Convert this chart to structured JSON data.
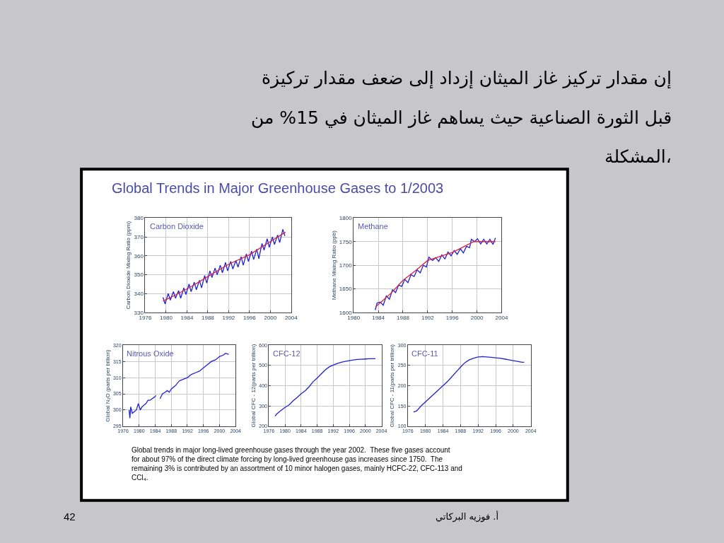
{
  "chart_data": [
    {
      "type": "line",
      "title": "Carbon Dioxide",
      "ylabel": "Carbon Dioxide Mixing Ratio (ppm)",
      "xlim": [
        1976,
        2004
      ],
      "xticks": [
        1976,
        1980,
        1984,
        1988,
        1992,
        1996,
        2000,
        2004
      ],
      "ylim": [
        330,
        380
      ],
      "yticks": [
        330,
        340,
        350,
        360,
        370,
        380
      ],
      "grid": true,
      "annotations": [
        "إن مقدار تركيز غاز الميثان إزداد إلى ضعف مقدار تركيزة",
        "قبل الثورة الصناعية حيث يساهم غاز الميثان في 15% من",
        "المشكلة،",
        "Global Trends in Major Greenhouse Gases to 1/2003",
        "Global trends in major long-lived greenhouse gases through the year 2002.  These five gases account for about 97% of the direct climate forcing by long-lived greenhouse gas increases since 1750.  The remaining 3% is contributed by an assortment of 10 minor halogen gases, mainly HCFC-22, CFC-113 and CCl₄.",
        "أ. فوزيه البركاتي",
        "42"
      ],
      "series": [
        {
          "color": "#1f22d6",
          "x": [
            1979.4,
            1979.8,
            1980.4,
            1980.8,
            1981.4,
            1981.8,
            1982.4,
            1982.8,
            1983.4,
            1983.8,
            1984.4,
            1984.8,
            1985.4,
            1985.8,
            1986.4,
            1986.8,
            1987.4,
            1987.8,
            1988.4,
            1988.8,
            1989.4,
            1989.8,
            1990.4,
            1990.8,
            1991.4,
            1991.8,
            1992.4,
            1992.8,
            1993.4,
            1993.8,
            1994.4,
            1994.8,
            1995.4,
            1995.8,
            1996.4,
            1996.8,
            1997.4,
            1997.8,
            1998.4,
            1998.8,
            1999.4,
            1999.8,
            2000.4,
            2000.8,
            2001.4,
            2001.8,
            2002.4,
            2002.8
          ],
          "values": [
            338,
            334.5,
            340,
            336.5,
            341,
            337.5,
            341.5,
            337.5,
            343,
            339.5,
            345,
            341,
            346,
            342,
            347,
            343,
            349.5,
            345.5,
            352,
            348.5,
            353.5,
            350,
            355,
            351,
            356.5,
            352,
            357,
            353,
            357.5,
            354,
            359.5,
            355,
            361,
            357,
            362.5,
            358,
            363.5,
            358.5,
            366.5,
            363,
            369,
            364.5,
            370,
            366,
            371,
            367,
            374,
            370.5
          ]
        },
        {
          "color": "#e0203a",
          "x": [
            1979.4,
            1982,
            1985,
            1988,
            1992,
            1996,
            2000,
            2002.9
          ],
          "values": [
            336,
            339.5,
            344,
            349,
            355.5,
            360.5,
            367.5,
            372.5
          ]
        }
      ]
    },
    {
      "type": "line",
      "title": "Methane",
      "ylabel": "Methane Mixing Ratio (ppb)",
      "xlim": [
        1980,
        2004
      ],
      "xticks": [
        1980,
        1984,
        1988,
        1992,
        1996,
        2000,
        2004
      ],
      "ylim": [
        1600,
        1800
      ],
      "yticks": [
        1600,
        1650,
        1700,
        1750,
        1800
      ],
      "grid": true,
      "series": [
        {
          "color": "#1f22d6",
          "x": [
            1983.5,
            1983.8,
            1984.3,
            1984.8,
            1985.3,
            1985.8,
            1986.3,
            1986.8,
            1987.3,
            1987.8,
            1988.3,
            1988.8,
            1989.3,
            1989.8,
            1990.3,
            1990.8,
            1991.3,
            1991.8,
            1992.2,
            1992.8,
            1993.3,
            1993.8,
            1994.3,
            1994.8,
            1995.3,
            1995.8,
            1996.3,
            1996.8,
            1997.3,
            1997.8,
            1998.3,
            1998.8,
            1999.1,
            1999.6,
            2000.1,
            2000.6,
            2001.1,
            2001.6,
            2002.1,
            2002.6,
            2003
          ],
          "values": [
            1605,
            1620,
            1622,
            1615,
            1635,
            1628,
            1648,
            1642,
            1658,
            1655,
            1670,
            1663,
            1680,
            1676,
            1690,
            1684,
            1700,
            1696,
            1717,
            1710,
            1716,
            1708,
            1722,
            1713,
            1728,
            1720,
            1731,
            1723,
            1735,
            1726,
            1740,
            1737,
            1755,
            1750,
            1756,
            1745,
            1755,
            1745,
            1755,
            1744,
            1758
          ]
        },
        {
          "color": "#e0203a",
          "x": [
            1983.6,
            1986,
            1988,
            1990,
            1992,
            1996,
            1999.5,
            2003
          ],
          "values": [
            1612,
            1640,
            1668,
            1688,
            1710,
            1727,
            1750,
            1750
          ]
        }
      ]
    },
    {
      "type": "line",
      "title": "Nitrous Oxide",
      "ylabel": "Global N₂O (parts per billion)",
      "xlim": [
        1976,
        2004
      ],
      "xticks": [
        1976,
        1980,
        1984,
        1988,
        1992,
        1996,
        2000,
        2004
      ],
      "ylim": [
        295,
        320
      ],
      "yticks": [
        295,
        300,
        305,
        310,
        315,
        320
      ],
      "grid": true,
      "series": [
        {
          "color": "#1f22d6",
          "x": [
            1977.5,
            1977.7,
            1977.9,
            1978.3,
            1978.8,
            1979.3,
            1979.8,
            1980.3,
            1980.7,
            1981.2,
            1981.7,
            1982.2,
            1982.7,
            1983.2,
            1983.8,
            1984.2,
            1984.7,
            1985.2,
            1985.8,
            1986.5,
            1987,
            1987.5,
            1988,
            1989,
            1990,
            1991,
            1992,
            1993,
            1994,
            1995,
            1996,
            1997,
            1998,
            1999,
            2000,
            2001,
            2001.5,
            2002.3
          ],
          "values": [
            300,
            297.5,
            301,
            299,
            299.5,
            300,
            302,
            300,
            301,
            301.5,
            302,
            303,
            303,
            303.5,
            304,
            304.5,
            null,
            303.5,
            305,
            305.5,
            306,
            305.5,
            306.5,
            307.5,
            309,
            309.5,
            310,
            311,
            311.5,
            312,
            313,
            314,
            315,
            315.5,
            316.5,
            317,
            317.5,
            317.2
          ]
        }
      ]
    },
    {
      "type": "line",
      "title": "CFC-12",
      "ylabel": "Global CFC - 12(parts per trillion)",
      "xlim": [
        1976,
        2004
      ],
      "xticks": [
        1976,
        1980,
        1984,
        1988,
        1992,
        1996,
        2000,
        2004
      ],
      "ylim": [
        200,
        600
      ],
      "yticks": [
        200,
        300,
        400,
        500,
        600
      ],
      "grid": true,
      "series": [
        {
          "color": "#1f22d6",
          "x": [
            1977.5,
            1978,
            1979,
            1980,
            1981,
            1982,
            1983,
            1984,
            1985,
            1986,
            1987,
            1988,
            1989,
            1990,
            1991,
            1992,
            1993,
            1994,
            1995,
            1996,
            1997,
            1998,
            1999,
            2000,
            2001,
            2002,
            2002.5
          ],
          "values": [
            250,
            262,
            278,
            293,
            305,
            325,
            342,
            360,
            375,
            395,
            420,
            438,
            458,
            478,
            493,
            502,
            510,
            516,
            520,
            524,
            527,
            530,
            531,
            532,
            533,
            533,
            533
          ]
        }
      ]
    },
    {
      "type": "line",
      "title": "CFC-11",
      "ylabel": "Global CFC - 11(parts per trillion)",
      "xlim": [
        1976,
        2004
      ],
      "xticks": [
        1976,
        1980,
        1984,
        1988,
        1992,
        1996,
        2000,
        2004
      ],
      "ylim": [
        100,
        300
      ],
      "yticks": [
        100,
        150,
        200,
        250,
        300
      ],
      "grid": true,
      "series": [
        {
          "color": "#1f22d6",
          "x": [
            1977.3,
            1978,
            1979,
            1980,
            1981,
            1982,
            1983,
            1984,
            1985,
            1986,
            1987,
            1988,
            1989,
            1990,
            1991,
            1992,
            1993,
            1994,
            1995,
            1996,
            1997,
            1998,
            1999,
            2000,
            2001,
            2002,
            2002.5
          ],
          "values": [
            135,
            138,
            150,
            160,
            170,
            180,
            190,
            200,
            210,
            222,
            234,
            246,
            257,
            264,
            268,
            271,
            272,
            271,
            270,
            269,
            268,
            266,
            264,
            262,
            260,
            258,
            258
          ]
        }
      ]
    }
  ]
}
